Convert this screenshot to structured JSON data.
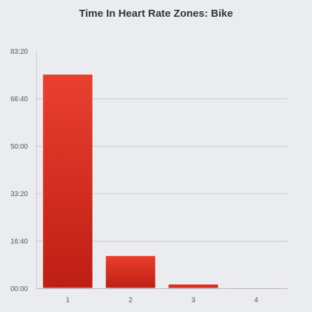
{
  "chart_data": {
    "type": "bar",
    "title": "Time In Heart Rate Zones: Bike",
    "xlabel": "",
    "ylabel": "",
    "categories": [
      "1",
      "2",
      "3",
      "4"
    ],
    "values_minutes": [
      75.2,
      11.5,
      1.5,
      0.3
    ],
    "ylim_minutes": [
      0,
      83.333
    ],
    "yticks": [
      {
        "value": 0,
        "label": "00:00"
      },
      {
        "value": 16.667,
        "label": "16:40"
      },
      {
        "value": 33.333,
        "label": "33:20"
      },
      {
        "value": 50,
        "label": "50:00"
      },
      {
        "value": 66.667,
        "label": "66:40"
      },
      {
        "value": 83.333,
        "label": "83:20"
      }
    ],
    "grid": true,
    "bar_color_top": "#e94030",
    "bar_color_bottom": "#be1e14"
  }
}
